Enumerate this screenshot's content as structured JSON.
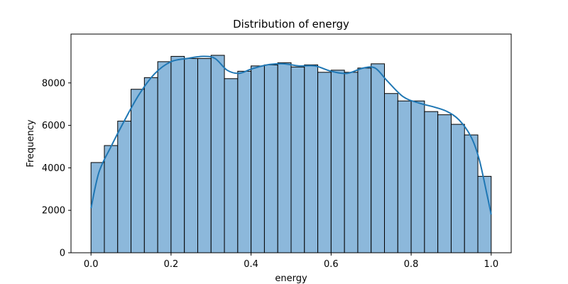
{
  "chart_data": {
    "type": "bar",
    "title": "Distribution of energy",
    "xlabel": "energy",
    "ylabel": "Frequency",
    "xlim": [
      -0.05,
      1.05
    ],
    "ylim": [
      0,
      10300
    ],
    "x_ticks": [
      0.0,
      0.2,
      0.4,
      0.6,
      0.8,
      1.0
    ],
    "x_tick_labels": [
      "0.0",
      "0.2",
      "0.4",
      "0.6",
      "0.8",
      "1.0"
    ],
    "y_ticks": [
      0,
      2000,
      4000,
      6000,
      8000
    ],
    "y_tick_labels": [
      "0",
      "2000",
      "4000",
      "6000",
      "8000"
    ],
    "bin_start": 0.0,
    "bin_width": 0.03333,
    "bins": 30,
    "values": [
      4250,
      5050,
      6200,
      7700,
      8250,
      9000,
      9250,
      9150,
      9150,
      9300,
      8200,
      8550,
      8800,
      8850,
      8950,
      8750,
      8850,
      8500,
      8600,
      8500,
      8700,
      8900,
      7500,
      7150,
      7150,
      6650,
      6500,
      6050,
      5550,
      3600
    ],
    "kde": {
      "x": [
        0.0,
        0.02,
        0.05,
        0.08,
        0.12,
        0.16,
        0.2,
        0.24,
        0.28,
        0.31,
        0.34,
        0.37,
        0.4,
        0.44,
        0.48,
        0.52,
        0.56,
        0.6,
        0.64,
        0.68,
        0.71,
        0.74,
        0.78,
        0.82,
        0.86,
        0.89,
        0.92,
        0.95,
        0.97,
        0.99,
        1.0
      ],
      "y": [
        2100,
        3800,
        5000,
        6100,
        7450,
        8450,
        9000,
        9150,
        9250,
        9150,
        8600,
        8450,
        8650,
        8850,
        8900,
        8800,
        8800,
        8550,
        8450,
        8700,
        8700,
        8100,
        7350,
        7050,
        6850,
        6650,
        6250,
        5450,
        4400,
        2700,
        1800
      ]
    },
    "colors": {
      "bar_fill": "#8cb8db",
      "bar_edge": "#000000",
      "kde_line": "#1f77b4"
    },
    "grid": false,
    "legend": "none"
  }
}
